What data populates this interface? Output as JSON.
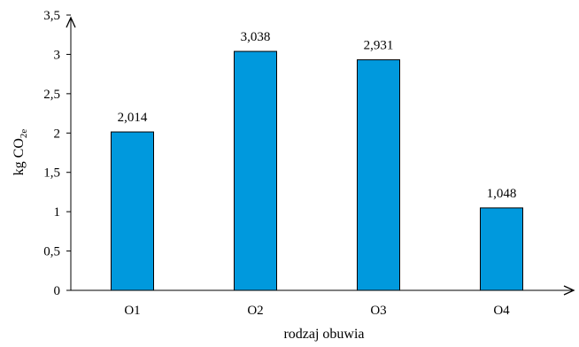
{
  "chart_data": {
    "type": "bar",
    "title": "",
    "xlabel": "rodzaj obuwia",
    "ylabel_main": "kg CO",
    "ylabel_sub": "2e",
    "categories": [
      "O1",
      "O2",
      "O3",
      "O4"
    ],
    "values": [
      2.014,
      3.038,
      2.931,
      1.048
    ],
    "value_labels": [
      "2,014",
      "3,038",
      "2,931",
      "1,048"
    ],
    "ylim": [
      0,
      3.5
    ],
    "yticks": [
      0,
      0.5,
      1,
      1.5,
      2,
      2.5,
      3,
      3.5
    ],
    "ytick_labels": [
      "0",
      "0,5",
      "1",
      "1,5",
      "2",
      "2,5",
      "3",
      "3,5"
    ],
    "grid": false,
    "legend": "none",
    "bar_color": "#0099dd",
    "bar_edge_color": "#000000"
  }
}
